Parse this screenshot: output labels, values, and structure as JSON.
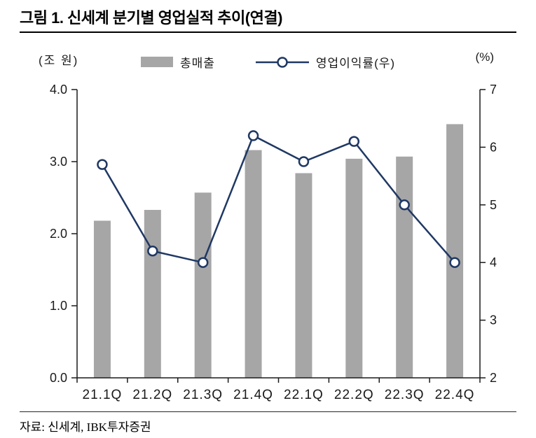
{
  "title": "그림 1. 신세계 분기별 영업실적 추이(연결)",
  "source": "자료: 신세계, IBK투자증권",
  "chart_data": {
    "type": "bar+line",
    "title": "그림 1. 신세계 분기별 영업실적 추이(연결)",
    "categories": [
      "21.1Q",
      "21.2Q",
      "21.3Q",
      "21.4Q",
      "22.1Q",
      "22.2Q",
      "22.3Q",
      "22.4Q"
    ],
    "series": [
      {
        "name": "총매출",
        "type": "bar",
        "axis": "left",
        "color": "#a6a6a6",
        "values": [
          2.18,
          2.33,
          2.57,
          3.16,
          2.84,
          3.04,
          3.07,
          3.52
        ]
      },
      {
        "name": "영업이익률(우)",
        "type": "line",
        "axis": "right",
        "color": "#1f3864",
        "marker": "circle-open",
        "values": [
          5.7,
          4.2,
          4.0,
          6.2,
          5.75,
          6.1,
          5.0,
          4.0
        ]
      }
    ],
    "left_axis": {
      "label": "(조 원)",
      "min": 0,
      "max": 4,
      "ticks": [
        "0.0",
        "1.0",
        "2.0",
        "3.0",
        "4.0"
      ]
    },
    "right_axis": {
      "label": "(%)",
      "min": 2,
      "max": 7,
      "ticks": [
        "2",
        "3",
        "4",
        "5",
        "6",
        "7"
      ]
    },
    "grid": false,
    "legend_position": "top"
  }
}
